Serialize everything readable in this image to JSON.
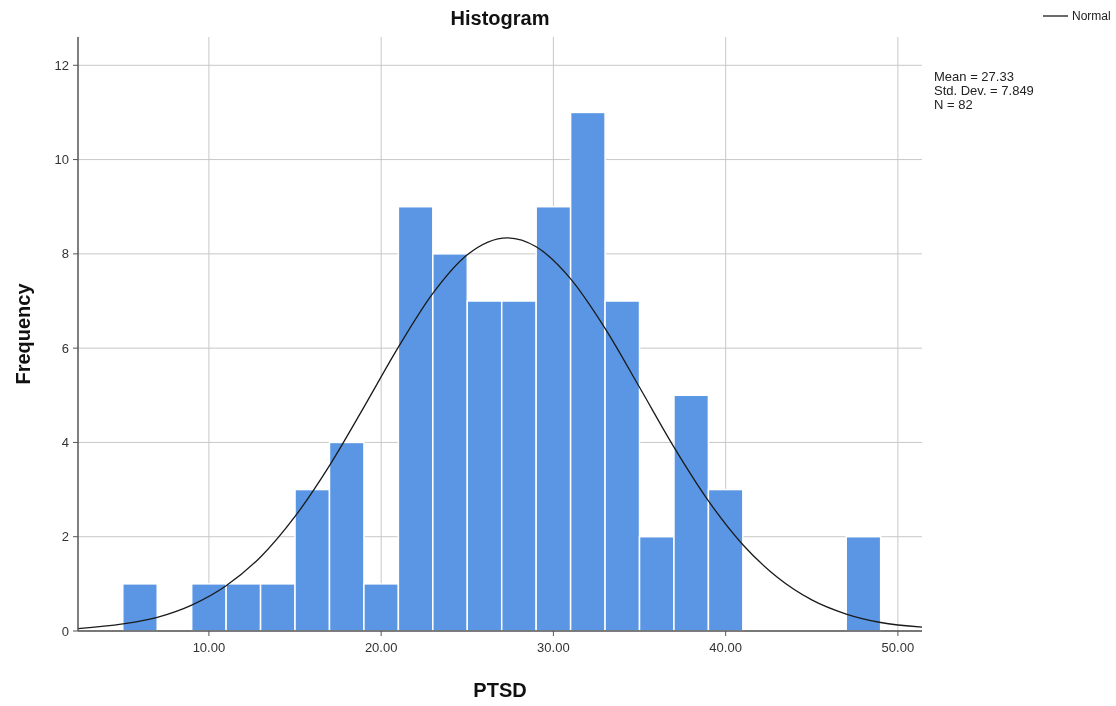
{
  "chart_data": {
    "type": "histogram",
    "title": "Histogram",
    "xlabel": "PTSD",
    "ylabel": "Frequency",
    "bins": [
      5,
      7,
      9,
      11,
      13,
      15,
      17,
      19,
      21,
      23,
      25,
      27,
      29,
      31,
      33,
      35,
      37,
      39,
      41,
      43,
      45,
      47,
      49
    ],
    "values": [
      1,
      0,
      1,
      1,
      1,
      3,
      4,
      1,
      9,
      8,
      7,
      7,
      9,
      11,
      7,
      2,
      5,
      3,
      0,
      0,
      0,
      2
    ],
    "color": "#5a96e3",
    "series": [
      {
        "type": "line",
        "name": "Normal",
        "color": "#1a1a1a",
        "x": [
          2.4,
          5,
          7,
          9,
          11,
          13,
          15,
          17,
          19,
          21,
          23,
          25,
          27.33,
          29,
          31,
          33,
          35,
          37,
          39,
          41,
          43,
          45,
          47,
          49,
          51.4
        ],
        "values": [
          0.05,
          0.15,
          0.29,
          0.55,
          0.96,
          1.57,
          2.43,
          3.51,
          4.75,
          6.02,
          7.16,
          7.98,
          8.34,
          8.15,
          7.47,
          6.42,
          5.17,
          3.9,
          2.76,
          1.83,
          1.14,
          0.66,
          0.36,
          0.18,
          0.08
        ]
      }
    ],
    "xlim": [
      2.4,
      51.4
    ],
    "xticks": [
      {
        "value": 10,
        "label": "10.00"
      },
      {
        "value": 20,
        "label": "20.00"
      },
      {
        "value": 30,
        "label": "30.00"
      },
      {
        "value": 40,
        "label": "40.00"
      },
      {
        "value": 50,
        "label": "50.00"
      }
    ],
    "ylim": [
      0,
      12.6
    ],
    "yticks": [
      0,
      2,
      4,
      6,
      8,
      10,
      12
    ],
    "grid": true,
    "legend": "top right",
    "marker": "none",
    "line_style": "solid",
    "annotations": [
      "Mean = 27.33",
      "Std. Dev. = 7.849",
      "N = 82"
    ]
  }
}
